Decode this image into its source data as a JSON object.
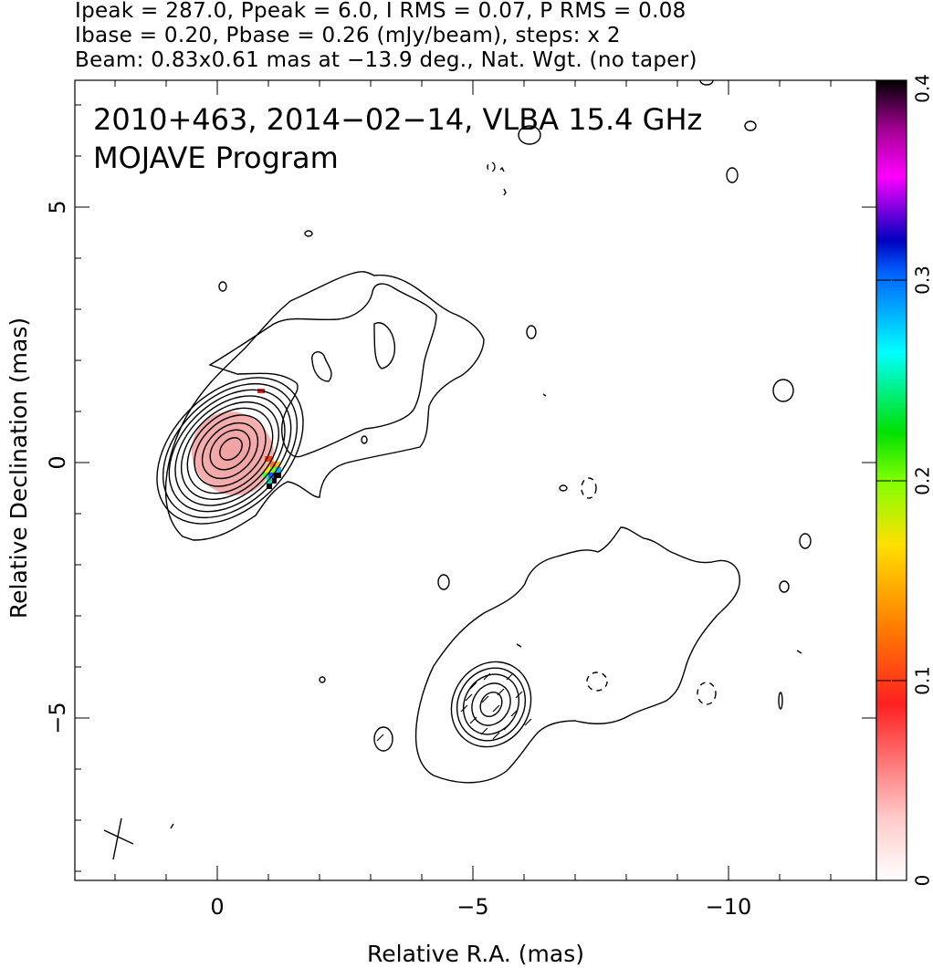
{
  "header": {
    "line1": "Ipeak = 287.0, Ppeak = 6.0, I RMS = 0.07, P RMS = 0.08",
    "line2": "Ibase = 0.20, Pbase = 0.26 (mJy/beam), steps: x 2",
    "line3": "Beam: 0.83x0.61 mas at −13.9 deg., Nat. Wgt. (no taper)"
  },
  "plot": {
    "title_line1": "2010+463, 2014−02−14, VLBA 15.4 GHz",
    "title_line2": "MOJAVE Program",
    "xlabel": "Relative R.A. (mas)",
    "ylabel": "Relative Declination (mas)",
    "x_ticks": [
      "0",
      "−5",
      "−10"
    ],
    "y_ticks": [
      "5",
      "0",
      "−5"
    ]
  },
  "colorbar": {
    "tick_labels": [
      "0",
      "0.1",
      "0.2",
      "0.3",
      "0.4"
    ]
  }
}
